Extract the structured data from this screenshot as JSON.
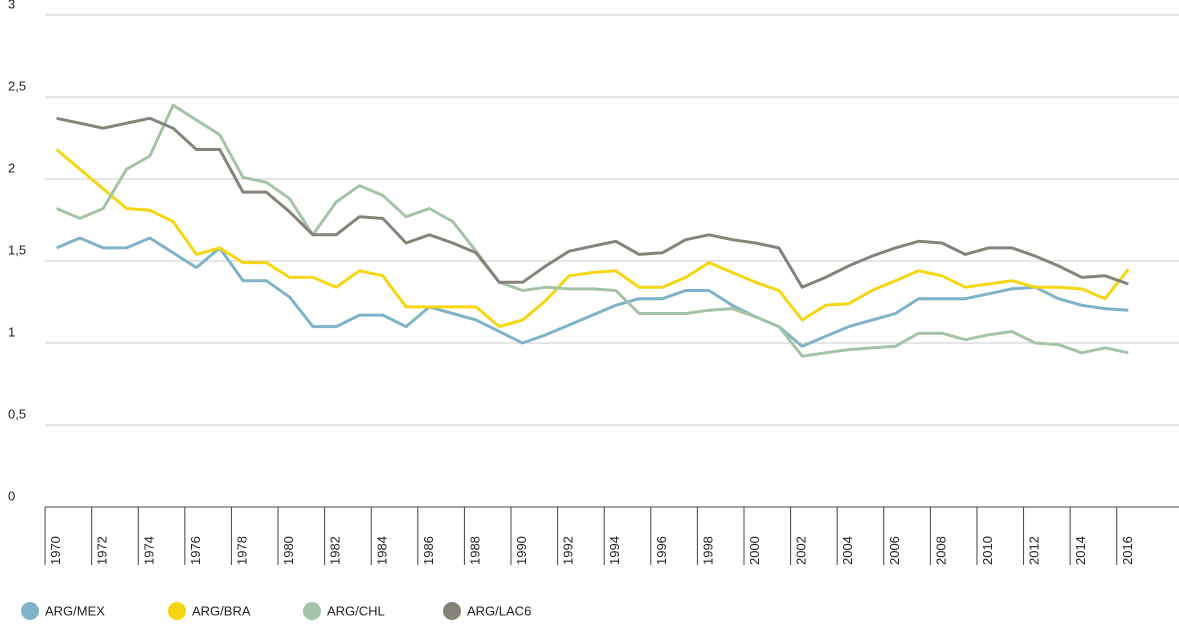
{
  "chart_data": {
    "type": "line",
    "x": [
      1970,
      1971,
      1972,
      1973,
      1974,
      1975,
      1976,
      1977,
      1978,
      1979,
      1980,
      1981,
      1982,
      1983,
      1984,
      1985,
      1986,
      1987,
      1988,
      1989,
      1990,
      1991,
      1992,
      1993,
      1994,
      1995,
      1996,
      1997,
      1998,
      1999,
      2000,
      2001,
      2002,
      2003,
      2004,
      2005,
      2006,
      2007,
      2008,
      2009,
      2010,
      2011,
      2012,
      2013,
      2014,
      2015,
      2016
    ],
    "xlim": [
      1969.5,
      2016.5
    ],
    "xticks": [
      1970,
      1972,
      1974,
      1976,
      1978,
      1980,
      1982,
      1984,
      1986,
      1988,
      1990,
      1992,
      1994,
      1996,
      1998,
      2000,
      2002,
      2004,
      2006,
      2008,
      2010,
      2012,
      2014,
      2016
    ],
    "ylim": [
      0,
      3
    ],
    "yticks": [
      0,
      {
        "value": 0.5,
        "label": "0,5"
      },
      1,
      {
        "value": 1.5,
        "label": "1,5"
      },
      2,
      {
        "value": 2.5,
        "label": "2,5"
      },
      3
    ],
    "grid": true,
    "legend": "bottom",
    "series": [
      {
        "name": "ARG/MEX",
        "color": "#7fb3c8",
        "values": [
          1.58,
          1.64,
          1.58,
          1.58,
          1.64,
          1.55,
          1.46,
          1.58,
          1.38,
          1.38,
          1.28,
          1.1,
          1.1,
          1.17,
          1.17,
          1.1,
          1.22,
          1.18,
          1.14,
          1.07,
          1.0,
          1.05,
          1.11,
          1.17,
          1.23,
          1.27,
          1.27,
          1.32,
          1.32,
          1.23,
          1.16,
          1.1,
          0.98,
          1.04,
          1.1,
          1.14,
          1.18,
          1.27,
          1.27,
          1.27,
          1.3,
          1.33,
          1.34,
          1.27,
          1.23,
          1.21,
          1.2
        ]
      },
      {
        "name": "ARG/BRA",
        "color": "#f5d60f",
        "values": [
          2.18,
          2.06,
          1.94,
          1.82,
          1.81,
          1.74,
          1.54,
          1.58,
          1.49,
          1.49,
          1.4,
          1.4,
          1.34,
          1.44,
          1.41,
          1.22,
          1.22,
          1.22,
          1.22,
          1.1,
          1.14,
          1.26,
          1.41,
          1.43,
          1.44,
          1.34,
          1.34,
          1.4,
          1.49,
          1.43,
          1.37,
          1.32,
          1.14,
          1.23,
          1.24,
          1.32,
          1.38,
          1.44,
          1.41,
          1.34,
          1.36,
          1.38,
          1.34,
          1.34,
          1.33,
          1.27,
          1.45
        ]
      },
      {
        "name": "ARG/CHL",
        "color": "#a4c3a7",
        "values": [
          1.82,
          1.76,
          1.82,
          2.06,
          2.14,
          2.45,
          2.36,
          2.27,
          2.01,
          1.98,
          1.88,
          1.66,
          1.86,
          1.96,
          1.9,
          1.77,
          1.82,
          1.74,
          1.56,
          1.37,
          1.32,
          1.34,
          1.33,
          1.33,
          1.32,
          1.18,
          1.18,
          1.18,
          1.2,
          1.21,
          1.16,
          1.1,
          0.92,
          0.94,
          0.96,
          0.97,
          0.98,
          1.06,
          1.06,
          1.02,
          1.05,
          1.07,
          1.0,
          0.99,
          0.94,
          0.97,
          0.94
        ]
      },
      {
        "name": "ARG/LAC6",
        "color": "#85837a",
        "values": [
          2.37,
          2.34,
          2.31,
          2.34,
          2.37,
          2.31,
          2.18,
          2.18,
          1.92,
          1.92,
          1.8,
          1.66,
          1.66,
          1.77,
          1.76,
          1.61,
          1.66,
          1.61,
          1.55,
          1.37,
          1.37,
          1.47,
          1.56,
          1.59,
          1.62,
          1.54,
          1.55,
          1.63,
          1.66,
          1.63,
          1.61,
          1.58,
          1.34,
          1.4,
          1.47,
          1.53,
          1.58,
          1.62,
          1.61,
          1.54,
          1.58,
          1.58,
          1.53,
          1.47,
          1.4,
          1.41,
          1.36
        ]
      }
    ]
  }
}
